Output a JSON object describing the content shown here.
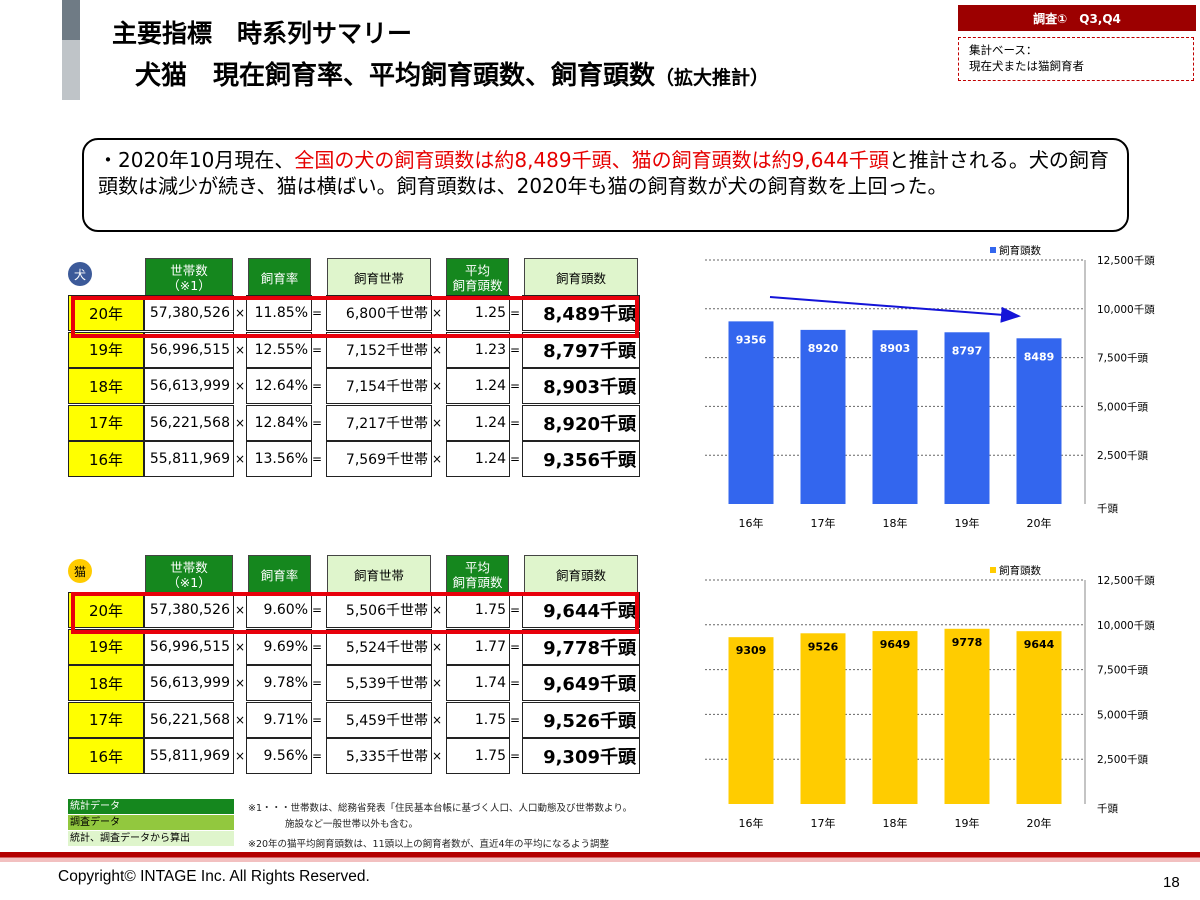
{
  "header": {
    "title_line1": "主要指標　時系列サマリー",
    "title_line2": "犬猫　現在飼育率、平均飼育頭数、飼育頭数",
    "title_line2_suffix": "（拡大推計）",
    "badge": "調査①　Q3,Q4",
    "base_label": "集計ベース：",
    "base_value": "現在犬または猫飼育者"
  },
  "summary": {
    "part1": "・2020年10月現在、",
    "highlight": "全国の犬の飼育頭数は約8,489千頭、猫の飼育頭数は約9,644千頭",
    "part2": "と推計される。犬の飼育頭数は減少が続き、猫は横ばい。飼育頭数は、2020年も猫の飼育数が犬の飼育数を上回った。"
  },
  "columns": {
    "households": "世帯数\n（※1）",
    "rate": "飼育率",
    "owning_households": "飼育世帯",
    "average": "平均\n飼育頭数",
    "total": "飼育頭数"
  },
  "operators": {
    "times": "×",
    "equals": "="
  },
  "dog_table": {
    "label": "犬",
    "rows": [
      {
        "year": "20年",
        "households": "57,380,526",
        "rate": "11.85%",
        "owning": "6,800千世帯",
        "avg": "1.25",
        "total": "8,489千頭"
      },
      {
        "year": "19年",
        "households": "56,996,515",
        "rate": "12.55%",
        "owning": "7,152千世帯",
        "avg": "1.23",
        "total": "8,797千頭"
      },
      {
        "year": "18年",
        "households": "56,613,999",
        "rate": "12.64%",
        "owning": "7,154千世帯",
        "avg": "1.24",
        "total": "8,903千頭"
      },
      {
        "year": "17年",
        "households": "56,221,568",
        "rate": "12.84%",
        "owning": "7,217千世帯",
        "avg": "1.24",
        "total": "8,920千頭"
      },
      {
        "year": "16年",
        "households": "55,811,969",
        "rate": "13.56%",
        "owning": "7,569千世帯",
        "avg": "1.24",
        "total": "9,356千頭"
      }
    ]
  },
  "cat_table": {
    "label": "猫",
    "rows": [
      {
        "year": "20年",
        "households": "57,380,526",
        "rate": "9.60%",
        "owning": "5,506千世帯",
        "avg": "1.75",
        "total": "9,644千頭"
      },
      {
        "year": "19年",
        "households": "56,996,515",
        "rate": "9.69%",
        "owning": "5,524千世帯",
        "avg": "1.77",
        "total": "9,778千頭"
      },
      {
        "year": "18年",
        "households": "56,613,999",
        "rate": "9.78%",
        "owning": "5,539千世帯",
        "avg": "1.74",
        "total": "9,649千頭"
      },
      {
        "year": "17年",
        "households": "56,221,568",
        "rate": "9.71%",
        "owning": "5,459千世帯",
        "avg": "1.75",
        "total": "9,526千頭"
      },
      {
        "year": "16年",
        "households": "55,811,969",
        "rate": "9.56%",
        "owning": "5,335千世帯",
        "avg": "1.75",
        "total": "9,309千頭"
      }
    ]
  },
  "legend": {
    "stat": "統計データ",
    "survey": "調査データ",
    "calc": "統計、調査データから算出"
  },
  "notes": {
    "note1_line1": "※1・・・世帯数は、総務省発表「住民基本台帳に基づく人口、人口動態及び世帯数より。",
    "note1_line2": "施設など一般世帯以外も含む。",
    "note2": "※20年の猫平均飼育頭数は、11頭以上の飼育者数が、直近4年の平均になるよう調整"
  },
  "footer": {
    "copyright": "Copyright© INTAGE Inc. All Rights Reserved.",
    "page": "18"
  },
  "colors": {
    "dog_bar": "#3366ee",
    "cat_bar": "#ffcc00",
    "dark_green": "#15871e",
    "light_green": "#dff5cc",
    "highlight_red": "#e8000b"
  },
  "chart_data": [
    {
      "type": "bar",
      "categories": [
        "16年",
        "17年",
        "18年",
        "19年",
        "20年"
      ],
      "series": [
        {
          "name": "飼育頭数",
          "values": [
            9356,
            8920,
            8903,
            8797,
            8489
          ]
        }
      ],
      "data_labels": [
        "9356",
        "8920",
        "8903",
        "8797",
        "8489"
      ],
      "yticks": [
        "千頭",
        "2,500千頭",
        "5,000千頭",
        "7,500千頭",
        "10,000千頭",
        "12,500千頭"
      ],
      "ylim": [
        0,
        12500
      ],
      "y_axis_side": "right",
      "legend_position": "top-right",
      "trend_arrow": true,
      "grid": true
    },
    {
      "type": "bar",
      "categories": [
        "16年",
        "17年",
        "18年",
        "19年",
        "20年"
      ],
      "series": [
        {
          "name": "飼育頭数",
          "values": [
            9309,
            9526,
            9649,
            9778,
            9644
          ]
        }
      ],
      "data_labels": [
        "9309",
        "9526",
        "9649",
        "9778",
        "9644"
      ],
      "yticks": [
        "千頭",
        "2,500千頭",
        "5,000千頭",
        "7,500千頭",
        "10,000千頭",
        "12,500千頭"
      ],
      "ylim": [
        0,
        12500
      ],
      "y_axis_side": "right",
      "legend_position": "top-right",
      "grid": true
    }
  ]
}
